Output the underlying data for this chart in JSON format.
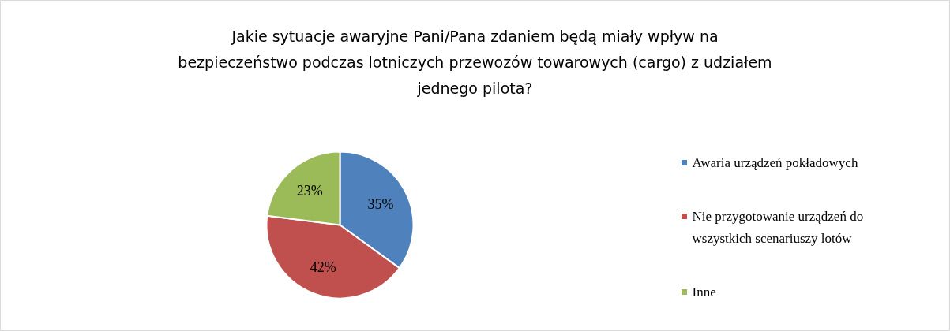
{
  "chart_data": {
    "type": "pie",
    "title": "Jakie sytuacje awaryjne Pani/Pana zdaniem będą miały wpływ na bezpieczeństwo podczas lotniczych przewozów towarowych (cargo) z udziałem jednego pilota?",
    "categories": [
      "Awaria urządzeń pokładowych",
      "Nie przygotowanie urządzeń do wszystkich scenariuszy lotów",
      "Inne"
    ],
    "values": [
      35,
      42,
      23
    ],
    "colors": [
      "#4f81bd",
      "#c0504d",
      "#9bbb59"
    ],
    "value_labels": [
      "35%",
      "42%",
      "23%"
    ],
    "legend": "right"
  }
}
